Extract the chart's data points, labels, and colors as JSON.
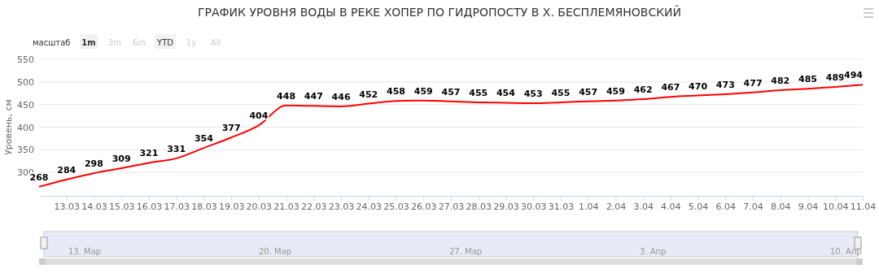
{
  "chart_data": {
    "type": "line",
    "title": "ГРАФИК УРОВНЯ ВОДЫ В РЕКЕ ХОПЕР ПО ГИДРОПОСТУ В Х. БЕСПЛЕМЯНОВСКИЙ",
    "ylabel": "Уровень, см",
    "x": [
      "--03-12",
      "--03-13",
      "--03-14",
      "--03-15",
      "--03-16",
      "--03-17",
      "--03-18",
      "--03-19",
      "--03-20",
      "--03-21",
      "--03-22",
      "--03-23",
      "--03-24",
      "--03-25",
      "--03-26",
      "--03-27",
      "--03-28",
      "--03-29",
      "--03-30",
      "--03-31",
      "--04-01",
      "--04-02",
      "--04-03",
      "--04-04",
      "--04-05",
      "--04-06",
      "--04-07",
      "--04-08",
      "--04-09",
      "--04-10",
      "--04-11"
    ],
    "series": [
      {
        "color": "#ff0000",
        "values": [
          268,
          284,
          298,
          309,
          321,
          331,
          354,
          377,
          404,
          448,
          447,
          446,
          452,
          458,
          459,
          457,
          455,
          454,
          453,
          455,
          457,
          459,
          462,
          467,
          470,
          473,
          477,
          482,
          485,
          489,
          494
        ]
      }
    ],
    "data_labels": true,
    "ylim": [
      248,
      552
    ],
    "yticks": [
      300,
      350,
      400,
      450,
      500,
      550
    ],
    "xlim": [
      "--03-12",
      "--04-11"
    ],
    "xticks": [
      {
        "value": "--03-13",
        "label": "13.03"
      },
      {
        "value": "--03-14",
        "label": "14.03"
      },
      {
        "value": "--03-15",
        "label": "15.03"
      },
      {
        "value": "--03-16",
        "label": "16.03"
      },
      {
        "value": "--03-17",
        "label": "17.03"
      },
      {
        "value": "--03-18",
        "label": "18.03"
      },
      {
        "value": "--03-19",
        "label": "19.03"
      },
      {
        "value": "--03-20",
        "label": "20.03"
      },
      {
        "value": "--03-21",
        "label": "21.03"
      },
      {
        "value": "--03-22",
        "label": "22.03"
      },
      {
        "value": "--03-23",
        "label": "23.03"
      },
      {
        "value": "--03-24",
        "label": "24.03"
      },
      {
        "value": "--03-25",
        "label": "25.03"
      },
      {
        "value": "--03-26",
        "label": "26.03"
      },
      {
        "value": "--03-27",
        "label": "27.03"
      },
      {
        "value": "--03-28",
        "label": "28.03"
      },
      {
        "value": "--03-29",
        "label": "29.03"
      },
      {
        "value": "--03-30",
        "label": "30.03"
      },
      {
        "value": "--03-31",
        "label": "31.03"
      },
      {
        "value": "--04-01",
        "label": "1.04"
      },
      {
        "value": "--04-02",
        "label": "2.04"
      },
      {
        "value": "--04-03",
        "label": "3.04"
      },
      {
        "value": "--04-04",
        "label": "4.04"
      },
      {
        "value": "--04-05",
        "label": "5.04"
      },
      {
        "value": "--04-06",
        "label": "6.04"
      },
      {
        "value": "--04-07",
        "label": "7.04"
      },
      {
        "value": "--04-08",
        "label": "8.04"
      },
      {
        "value": "--04-09",
        "label": "9.04"
      },
      {
        "value": "--04-10",
        "label": "10.04"
      },
      {
        "value": "--04-11",
        "label": "11.04"
      }
    ],
    "grid": "y",
    "marker": "none",
    "line_style": "solid",
    "annotations": [
      "масштаб",
      "1m",
      "3m",
      "6m",
      "YTD",
      "1y",
      "All",
      "13. Мар",
      "20. Мар",
      "27. Мар",
      "3. Апр",
      "10. Апр"
    ]
  }
}
